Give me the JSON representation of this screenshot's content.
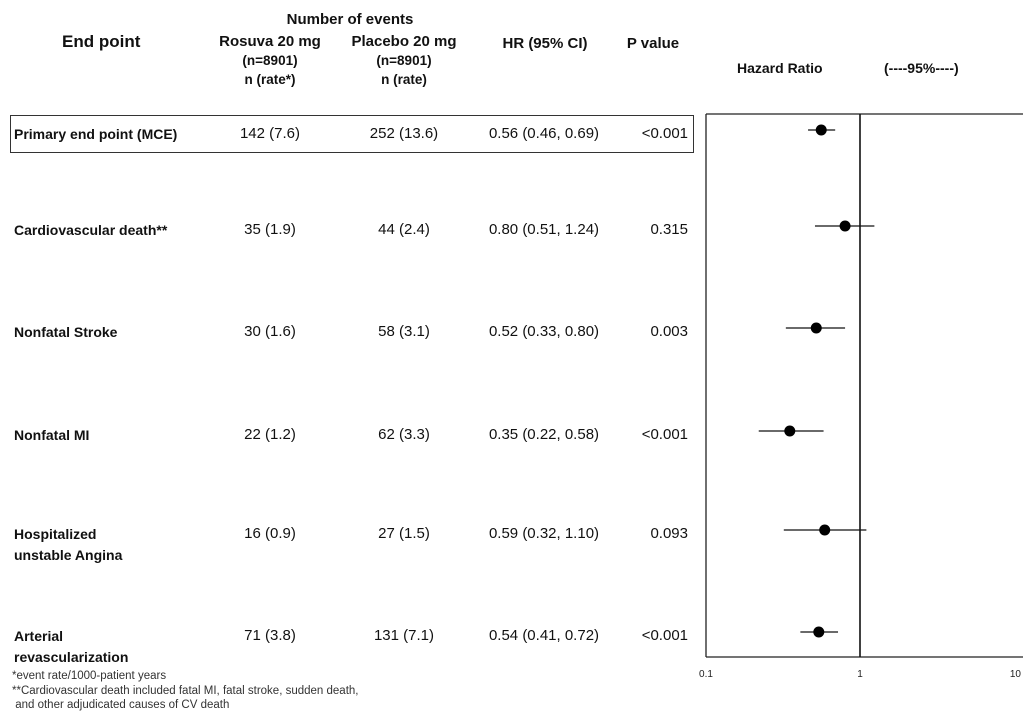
{
  "table": {
    "group_header": "Number of events",
    "columns": {
      "endpoint": "End point",
      "rosuva": [
        "Rosuva 20 mg",
        "(n=8901)",
        "n (rate*)"
      ],
      "placebo": [
        "Placebo 20 mg",
        "(n=8901)",
        "n (rate)"
      ],
      "hr": "HR (95% CI)",
      "p": "P value"
    },
    "rows": [
      {
        "label": [
          "Primary end point (MCE)"
        ],
        "rosuva": "142 (7.6)",
        "placebo": "252 (13.6)",
        "hr": "0.56 (0.46, 0.69)",
        "p": "<0.001"
      },
      {
        "label": [
          "Cardiovascular death**"
        ],
        "rosuva": "35 (1.9)",
        "placebo": "44 (2.4)",
        "hr": "0.80 (0.51, 1.24)",
        "p": "0.315"
      },
      {
        "label": [
          "Nonfatal Stroke"
        ],
        "rosuva": "30 (1.6)",
        "placebo": "58 (3.1)",
        "hr": "0.52 (0.33, 0.80)",
        "p": "0.003"
      },
      {
        "label": [
          "Nonfatal MI"
        ],
        "rosuva": "22 (1.2)",
        "placebo": "62 (3.3)",
        "hr": "0.35 (0.22, 0.58)",
        "p": "<0.001"
      },
      {
        "label": [
          "Hospitalized",
          "unstable Angina"
        ],
        "rosuva": "16 (0.9)",
        "placebo": "27 (1.5)",
        "hr": "0.59 (0.32, 1.10)",
        "p": "0.093"
      },
      {
        "label": [
          "Arterial",
          "revascularization"
        ],
        "rosuva": "71 (3.8)",
        "placebo": "131 (7.1)",
        "hr": "0.54 (0.41, 0.72)",
        "p": "<0.001"
      }
    ],
    "footnotes": [
      "*event rate/1000-patient years",
      "**Cardiovascular death included fatal MI, fatal stroke, sudden death,",
      " and other adjudicated causes of CV death"
    ]
  },
  "chart_data": {
    "type": "scatter",
    "subtype": "forest",
    "title": "Hazard Ratio",
    "ci_label": "(----95%----)",
    "x_scale": "log",
    "xlim": [
      0.1,
      10
    ],
    "x_ticks": [
      "0.1",
      "1",
      "10"
    ],
    "reference_line": 1,
    "categories": [
      "Primary end point (MCE)",
      "Cardiovascular death**",
      "Nonfatal Stroke",
      "Nonfatal MI",
      "Hospitalized unstable Angina",
      "Arterial revascularization"
    ],
    "estimates": [
      0.56,
      0.8,
      0.52,
      0.35,
      0.59,
      0.54
    ],
    "ci_lower": [
      0.46,
      0.51,
      0.33,
      0.22,
      0.32,
      0.41
    ],
    "ci_upper": [
      0.69,
      1.24,
      0.8,
      0.58,
      1.1,
      0.72
    ],
    "grid": false,
    "legend": "none"
  }
}
